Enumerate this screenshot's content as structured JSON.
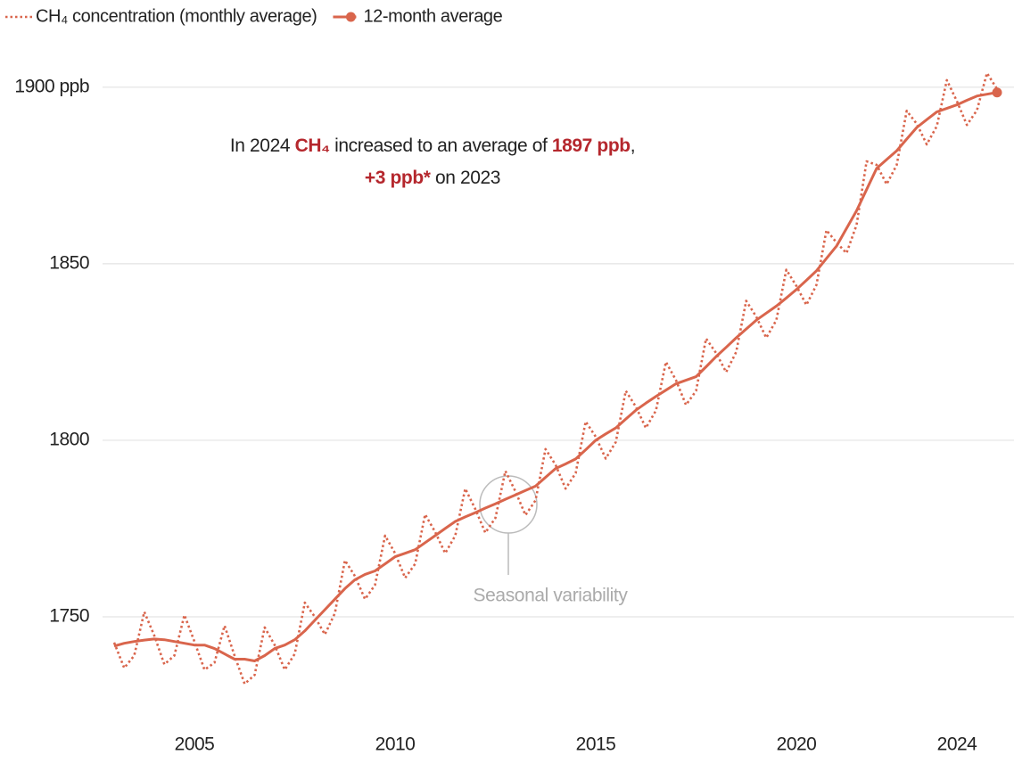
{
  "chart_data": {
    "type": "line",
    "annotation": {
      "parts": [
        "In 2024 ",
        "CH₄",
        " increased to an average of ",
        "1897 ppb",
        ","
      ],
      "line2": [
        "+3 ppb*",
        " on 2023"
      ]
    },
    "callout": "Seasonal variability",
    "x": [
      2003,
      2003.25,
      2003.5,
      2003.75,
      2004,
      2004.25,
      2004.5,
      2004.75,
      2005,
      2005.25,
      2005.5,
      2005.75,
      2006,
      2006.25,
      2006.5,
      2006.75,
      2007,
      2007.25,
      2007.5,
      2007.75,
      2008,
      2008.25,
      2008.5,
      2008.75,
      2009,
      2009.25,
      2009.5,
      2009.75,
      2010,
      2010.25,
      2010.5,
      2010.75,
      2011,
      2011.25,
      2011.5,
      2011.75,
      2012,
      2012.25,
      2012.5,
      2012.75,
      2013,
      2013.25,
      2013.5,
      2013.75,
      2014,
      2014.25,
      2014.5,
      2014.75,
      2015,
      2015.25,
      2015.5,
      2015.75,
      2016,
      2016.25,
      2016.5,
      2016.75,
      2017,
      2017.25,
      2017.5,
      2017.75,
      2018,
      2018.25,
      2018.5,
      2018.75,
      2019,
      2019.25,
      2019.5,
      2019.75,
      2020,
      2020.25,
      2020.5,
      2020.75,
      2021,
      2021.25,
      2021.5,
      2021.75,
      2022,
      2022.25,
      2022.5,
      2022.75,
      2023,
      2023.25,
      2023.5,
      2023.75,
      2024,
      2024.25,
      2024.5,
      2024.75,
      2025
    ],
    "series": [
      {
        "name": "CH₄ concentration (monthly average)",
        "color": "#d9654c",
        "style": "dotted",
        "values": [
          1742.7,
          1735.5,
          1739,
          1751.4,
          1744.7,
          1736.5,
          1739,
          1750.5,
          1743,
          1735,
          1737,
          1747.5,
          1739,
          1731,
          1733.5,
          1747,
          1742,
          1735,
          1739.5,
          1754,
          1750,
          1745,
          1751,
          1766,
          1761.5,
          1755,
          1759,
          1773,
          1768,
          1761,
          1765,
          1779,
          1774,
          1768,
          1773,
          1786.3,
          1780.5,
          1773.8,
          1778,
          1791.3,
          1785.5,
          1778.8,
          1783,
          1797.5,
          1793,
          1786.3,
          1790.7,
          1805.3,
          1801,
          1794.8,
          1799.5,
          1814,
          1809.5,
          1803.5,
          1808.4,
          1822.2,
          1817,
          1810,
          1814,
          1828.8,
          1824.7,
          1819.3,
          1825,
          1839.5,
          1835,
          1829,
          1834,
          1848.3,
          1843.7,
          1838.3,
          1844,
          1859.5,
          1856,
          1853,
          1861,
          1879,
          1878,
          1872.5,
          1878,
          1893.3,
          1889.6,
          1883.8,
          1889,
          1902,
          1896,
          1889.3,
          1893.5,
          1904,
          1899.5
        ]
      },
      {
        "name": "12-month average",
        "color": "#d9654c",
        "style": "solid",
        "values": [
          1741.7,
          1742.5,
          1743,
          1743.4,
          1743.7,
          1743.5,
          1743,
          1742.5,
          1742,
          1742,
          1741,
          1739.5,
          1738,
          1738,
          1737.5,
          1739,
          1741,
          1742,
          1743.5,
          1746,
          1749,
          1752,
          1755,
          1758,
          1760.5,
          1762,
          1763,
          1765,
          1767,
          1768,
          1769,
          1771,
          1773,
          1775,
          1777,
          1778.3,
          1779.5,
          1780.8,
          1782,
          1783.3,
          1784.5,
          1785.8,
          1787,
          1789.5,
          1792,
          1793.3,
          1794.7,
          1797.3,
          1800,
          1801.8,
          1803.5,
          1806,
          1808.5,
          1810.5,
          1812.4,
          1814.2,
          1816,
          1817,
          1818,
          1820.8,
          1823.7,
          1826.3,
          1829,
          1831.5,
          1834,
          1836,
          1838,
          1840.3,
          1842.7,
          1845.3,
          1848,
          1851.5,
          1855,
          1860,
          1865,
          1871,
          1877,
          1879.5,
          1882,
          1885.3,
          1888.6,
          1890.8,
          1893,
          1894,
          1895,
          1896.3,
          1897.5,
          1898,
          1898.5
        ]
      }
    ],
    "xlim": [
      2002.8,
      2025.4
    ],
    "xticks": [
      2005,
      2010,
      2015,
      2020,
      2024
    ],
    "ylim": [
      1725,
      1905
    ],
    "yticks": [
      1750,
      1800,
      1850,
      {
        "value": 1900,
        "label": "1900 ppb"
      }
    ],
    "grid": true,
    "legend": "top-left"
  }
}
